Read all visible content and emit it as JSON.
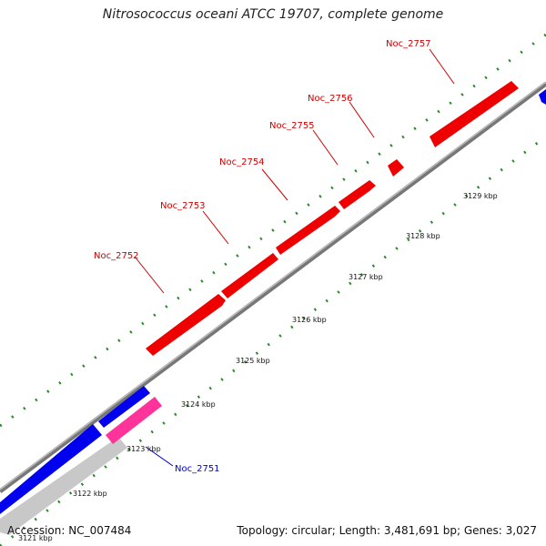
{
  "title": "Nitrosococcus oceani ATCC 19707, complete genome",
  "footer": {
    "accession": "Accession: NC_007484",
    "summary": "Topology: circular; Length: 3,481,691 bp; Genes: 3,027"
  },
  "colors": {
    "forward_gene": "#ff0000",
    "reverse_gene": "#0000ff",
    "rna": "#ff3399",
    "backbone": "#888888",
    "ticks": "#2a8a2a"
  },
  "genes": [
    {
      "label": "Noc_2751",
      "color": "#0000cc"
    },
    {
      "label": "Noc_2752",
      "color": "#cc0000"
    },
    {
      "label": "Noc_2753",
      "color": "#cc0000"
    },
    {
      "label": "Noc_2754",
      "color": "#cc0000"
    },
    {
      "label": "Noc_2755",
      "color": "#cc0000"
    },
    {
      "label": "Noc_2756",
      "color": "#cc0000"
    },
    {
      "label": "Noc_2757",
      "color": "#cc0000"
    }
  ],
  "ticks": [
    "3121 kbp",
    "3122 kbp",
    "3123 kbp",
    "3124 kbp",
    "3125 kbp",
    "3126 kbp",
    "3127 kbp",
    "3128 kbp",
    "3129 kbp"
  ]
}
